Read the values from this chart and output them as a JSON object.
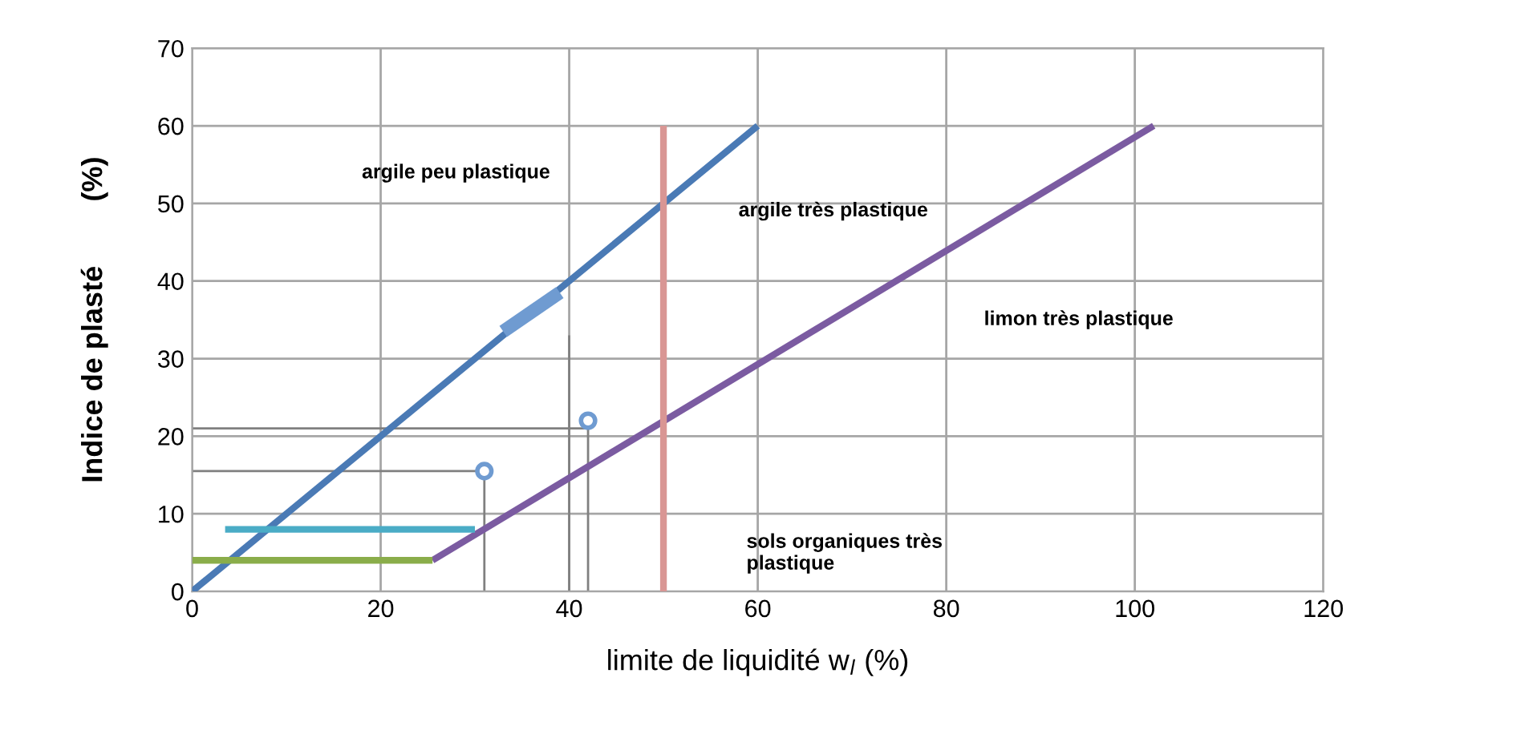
{
  "chart_data": {
    "type": "line",
    "xlabel": "limite de liquidité w$_{l}$ (%)",
    "ylabel": "Indice de plasté        (%)",
    "xlim": [
      0,
      120
    ],
    "xticks": [
      0,
      20,
      40,
      60,
      80,
      100,
      120
    ],
    "ylim": [
      0,
      70
    ],
    "yticks": [
      0,
      10,
      20,
      30,
      40,
      50,
      60,
      70
    ],
    "grid": true,
    "legend": false,
    "series": [
      {
        "color": "#4a7ab5",
        "x": [
          0,
          60
        ],
        "values": [
          0,
          60
        ]
      },
      {
        "color": "#7b5ba1",
        "x": [
          25.5,
          102
        ],
        "values": [
          4,
          60
        ]
      },
      {
        "color": "#8aad4a",
        "x": [
          0,
          25.5
        ],
        "values": [
          4,
          4
        ]
      },
      {
        "color": "#4aacc6",
        "x": [
          3.5,
          30
        ],
        "values": [
          8,
          8
        ]
      },
      {
        "color": "#d99694",
        "x": [
          50,
          50
        ],
        "values": [
          0,
          60
        ]
      },
      {
        "color": "#6f9bd1",
        "x": [
          33,
          39
        ],
        "values": [
          33.5,
          38.5
        ]
      },
      {
        "color": "#808080",
        "x": [
          0,
          31,
          31
        ],
        "values": [
          15.5,
          15.5,
          0
        ]
      },
      {
        "color": "#808080",
        "x": [
          0,
          42,
          42
        ],
        "values": [
          21,
          21,
          0
        ]
      },
      {
        "color": "#808080",
        "x": [
          40,
          40
        ],
        "values": [
          0,
          33
        ]
      },
      {
        "type": "scatter",
        "color": "#6f9bd1",
        "marker": "circle",
        "x": [
          31,
          42
        ],
        "values": [
          15.5,
          22
        ]
      }
    ],
    "annotations": [
      "argile peu plastique",
      "argile très plastique",
      "limon très plastique",
      "sols organiques très\nplastique"
    ]
  }
}
